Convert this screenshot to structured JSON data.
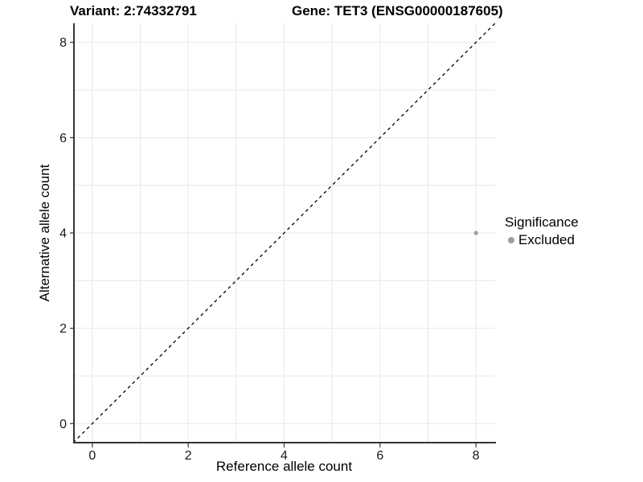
{
  "titles": {
    "variant": "Variant: 2:74332791",
    "gene": "Gene: TET3 (ENSG00000187605)"
  },
  "chart_data": {
    "type": "scatter",
    "xlabel": "Reference allele count",
    "ylabel": "Alternative allele count",
    "xlim": [
      -0.4,
      8.4
    ],
    "ylim": [
      -0.4,
      8.4
    ],
    "x_ticks": [
      0,
      2,
      4,
      6,
      8
    ],
    "y_ticks": [
      0,
      2,
      4,
      6,
      8
    ],
    "grid_values": [
      0,
      1,
      2,
      3,
      4,
      5,
      6,
      7,
      8
    ],
    "grid": true,
    "points": [
      {
        "x": 8,
        "y": 4,
        "series": "Excluded"
      }
    ],
    "reference_line": {
      "type": "identity",
      "style": "dashed",
      "x1": -0.4,
      "y1": -0.4,
      "x2": 8.4,
      "y2": 8.4
    },
    "legend": {
      "title": "Significance",
      "position": "right",
      "items": [
        {
          "label": "Excluded",
          "color": "#9e9e9e"
        }
      ]
    },
    "colors": {
      "point": "#9e9e9e",
      "grid": "#e8e8e8",
      "axis": "#333333",
      "tick_text": "#1a1a1a",
      "reference_line": "#000000",
      "background": "#ffffff"
    }
  }
}
